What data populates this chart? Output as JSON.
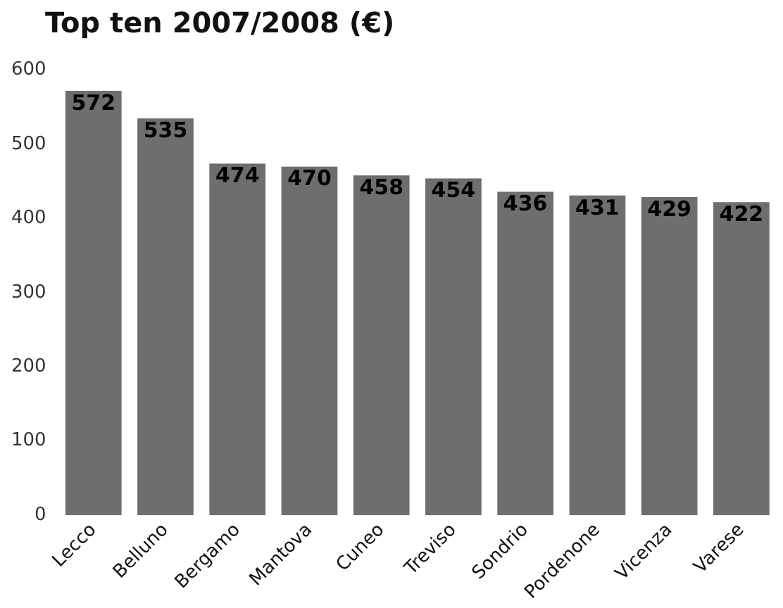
{
  "chart_data": {
    "type": "bar",
    "title": "Top ten 2007/2008 (€)",
    "categories": [
      "Lecco",
      "Belluno",
      "Bergamo",
      "Mantova",
      "Cuneo",
      "Treviso",
      "Sondrio",
      "Pordenone",
      "Vicenza",
      "Varese"
    ],
    "values": [
      572,
      535,
      474,
      470,
      458,
      454,
      436,
      431,
      429,
      422
    ],
    "color": "#6e6e6e",
    "ylim": [
      0,
      600
    ],
    "yticks": [
      0,
      100,
      200,
      300,
      400,
      500,
      600
    ],
    "data_labels": true,
    "grid": false,
    "legend": false
  }
}
